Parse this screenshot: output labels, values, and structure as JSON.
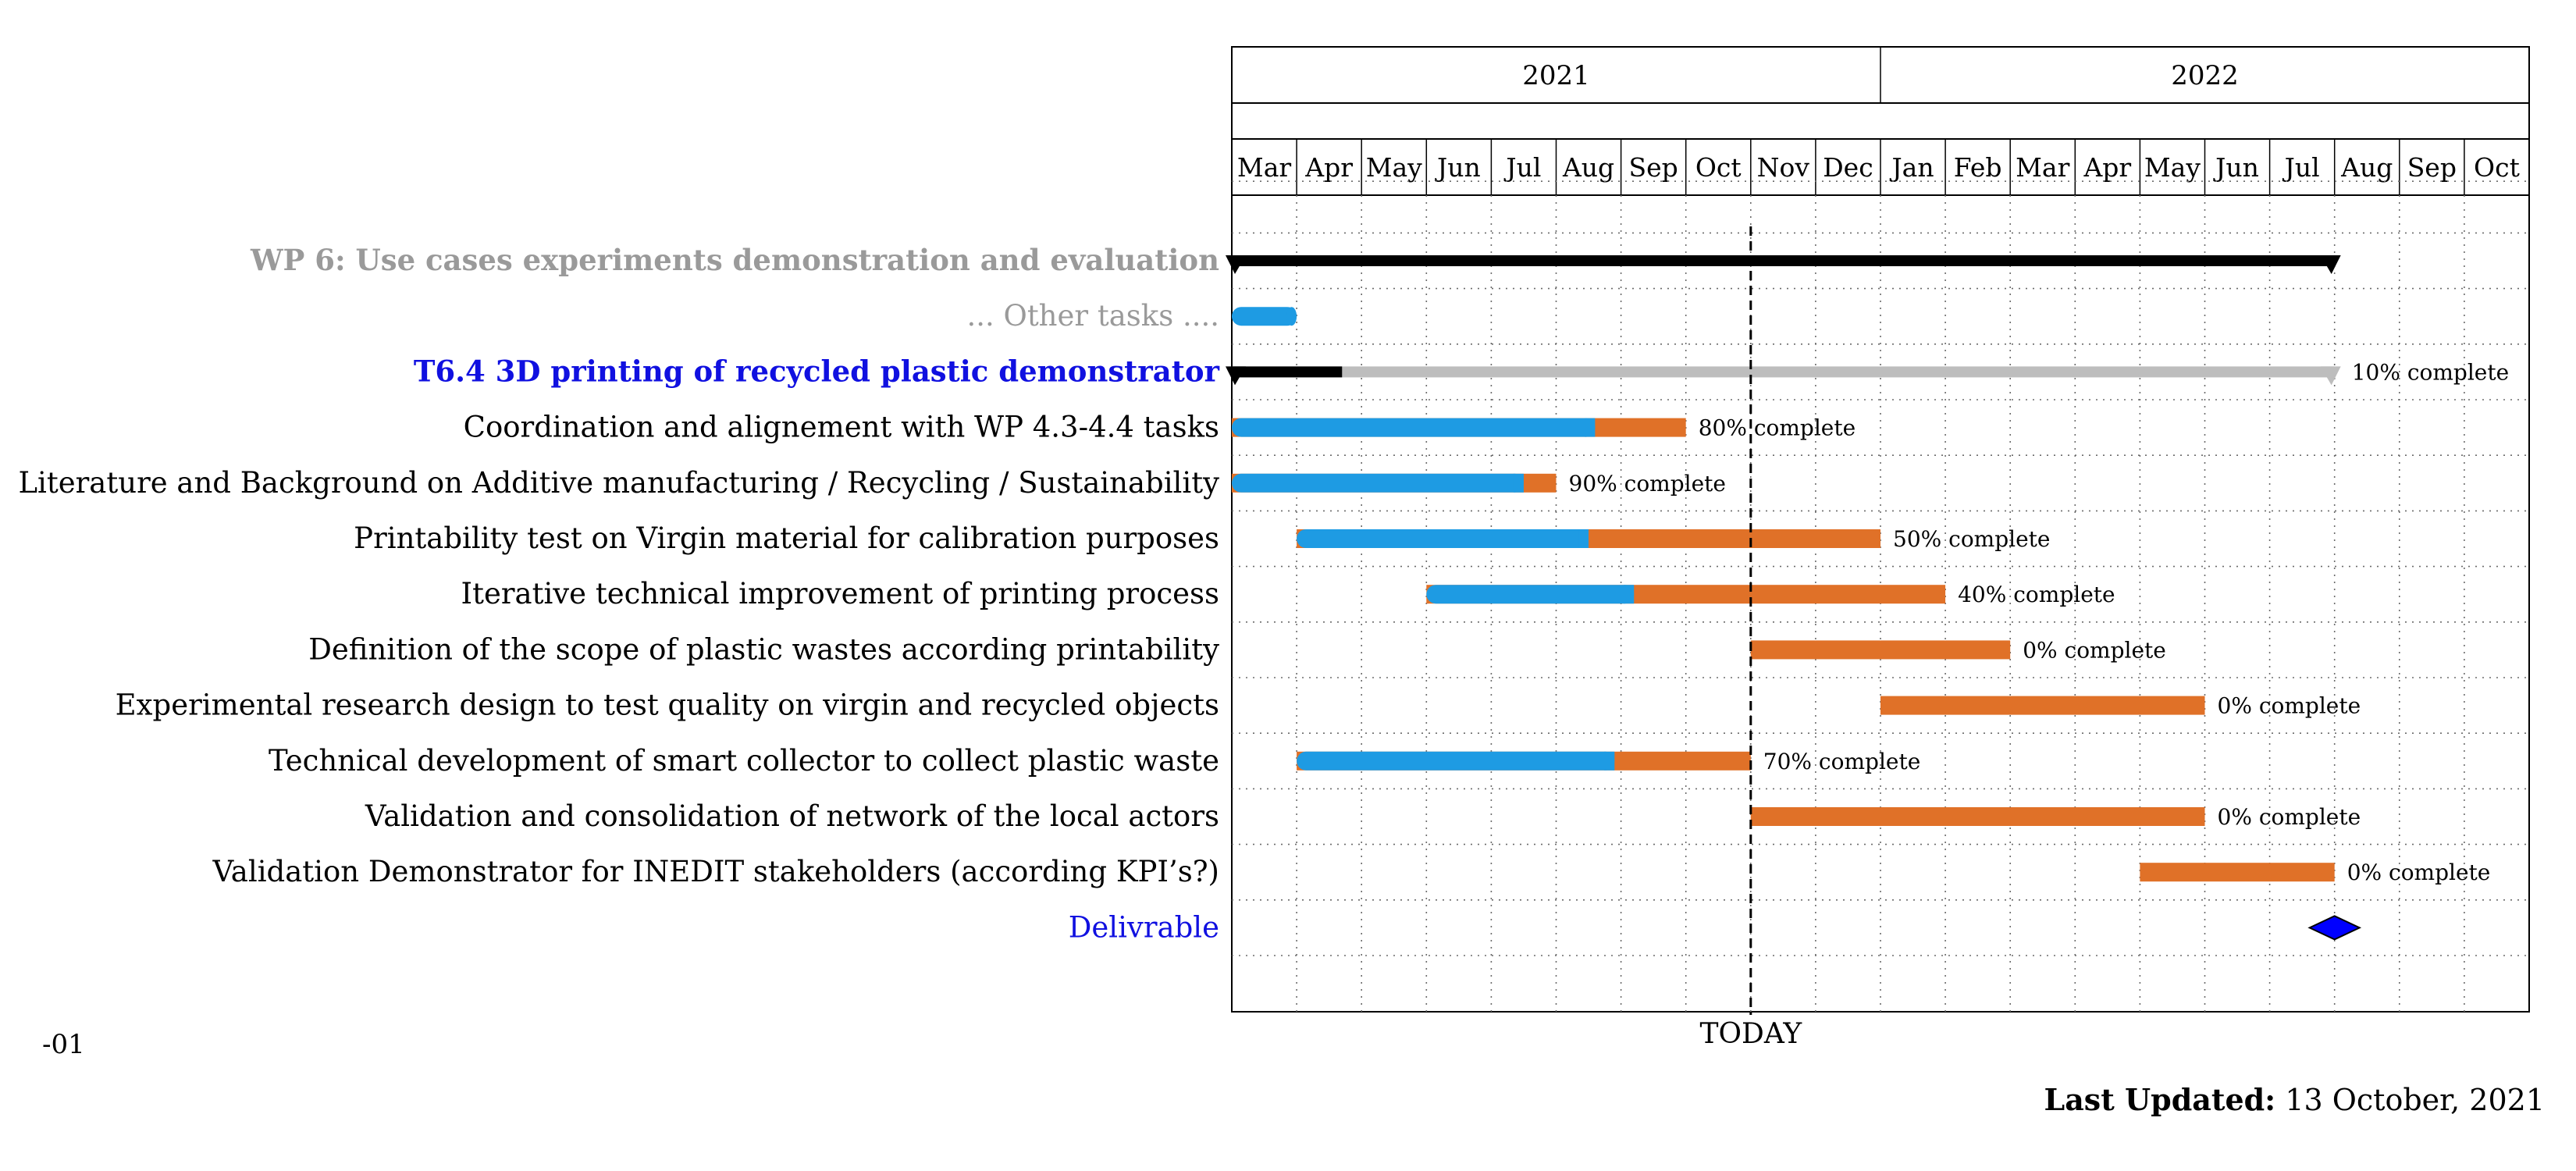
{
  "chart_data": {
    "type": "gantt",
    "years": [
      "2021",
      "2022"
    ],
    "months": [
      "Mar",
      "Apr",
      "May",
      "Jun",
      "Jul",
      "Aug",
      "Sep",
      "Oct",
      "Nov",
      "Dec",
      "Jan",
      "Feb",
      "Mar",
      "Apr",
      "May",
      "Jun",
      "Jul",
      "Aug",
      "Sep",
      "Oct"
    ],
    "timeline_start": "2021-03",
    "timeline_end": "2022-10",
    "today_label": "TODAY",
    "today_date": "2021-11-01",
    "tasks": [
      {
        "label": "WP 6: Use cases experiments demonstration and evaluation",
        "kind": "group",
        "label_color": "#9a9a9a",
        "bold": true,
        "start": "2021-03-01",
        "end": "2022-08-01"
      },
      {
        "label": "... Other tasks ....",
        "kind": "task",
        "label_color": "#9a9a9a",
        "start": "2021-03-01",
        "end": "2021-04-01",
        "complete": null
      },
      {
        "label": "T6.4 3D printing of recycled plastic demonstrator",
        "kind": "group",
        "label_color": "#1010e0",
        "bold": true,
        "start": "2021-03-01",
        "end": "2022-08-01",
        "complete": 10,
        "complete_text": "10% complete"
      },
      {
        "label": "Coordination and alignement with WP 4.3-4.4 tasks",
        "kind": "task",
        "label_color": "#000000",
        "start": "2021-03-01",
        "end": "2021-10-01",
        "complete": 80,
        "complete_text": "80% complete"
      },
      {
        "label": "Literature and Background on Additive manufacturing / Recycling / Sustainability",
        "kind": "task",
        "label_color": "#000000",
        "start": "2021-03-01",
        "end": "2021-08-01",
        "complete": 90,
        "complete_text": "90% complete"
      },
      {
        "label": "Printability test on Virgin material for calibration purposes",
        "kind": "task",
        "label_color": "#000000",
        "start": "2021-04-01",
        "end": "2022-01-01",
        "complete": 50,
        "complete_text": "50% complete"
      },
      {
        "label": "Iterative technical improvement of printing process",
        "kind": "task",
        "label_color": "#000000",
        "start": "2021-06-01",
        "end": "2022-02-01",
        "complete": 40,
        "complete_text": "40% complete"
      },
      {
        "label": "Definition of the scope of plastic wastes according printability",
        "kind": "task",
        "label_color": "#000000",
        "start": "2021-11-01",
        "end": "2022-03-01",
        "complete": 0,
        "complete_text": "0% complete"
      },
      {
        "label": "Experimental research design to test quality on virgin and recycled objects",
        "kind": "task",
        "label_color": "#000000",
        "start": "2022-01-01",
        "end": "2022-06-01",
        "complete": 0,
        "complete_text": "0% complete"
      },
      {
        "label": "Technical development of smart collector to collect plastic waste",
        "kind": "task",
        "label_color": "#000000",
        "start": "2021-04-01",
        "end": "2021-11-01",
        "complete": 70,
        "complete_text": "70% complete"
      },
      {
        "label": "Validation and consolidation of network of the local actors",
        "kind": "task",
        "label_color": "#000000",
        "start": "2021-11-01",
        "end": "2022-06-01",
        "complete": 0,
        "complete_text": "0% complete"
      },
      {
        "label": "Validation Demonstrator for INEDIT stakeholders (according KPI’s?)",
        "kind": "task",
        "label_color": "#000000",
        "start": "2022-05-01",
        "end": "2022-08-01",
        "complete": 0,
        "complete_text": "0% complete"
      },
      {
        "label": "Delivrable",
        "kind": "milestone",
        "label_color": "#1010e0",
        "date": "2022-08-01"
      }
    ],
    "colors": {
      "done": "#1e9be3",
      "remaining": "#e07128",
      "group_done": "#000000",
      "group_remaining": "#bdbdbd",
      "milestone": "#0000ff",
      "today_line": "#000000"
    },
    "grid": true
  },
  "footer": {
    "page_number": "-01",
    "updated_label": "Last Updated:",
    "updated_date": "13 October, 2021"
  }
}
